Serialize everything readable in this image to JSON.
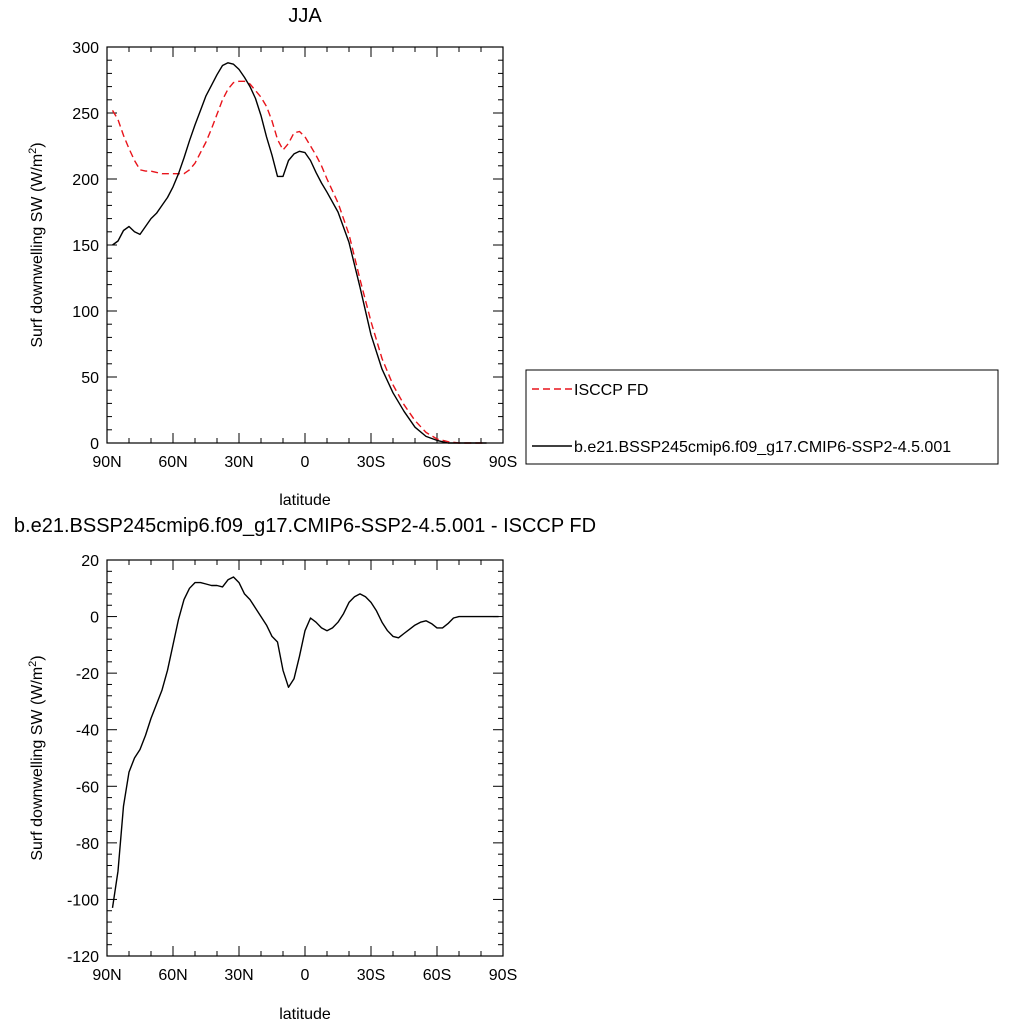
{
  "chart_data": [
    {
      "type": "line",
      "title": "JJA",
      "xlabel": "latitude",
      "ylabel": "Surf downwelling SW (W/m",
      "ylabel_superscript": "2",
      "ylabel_suffix": ")",
      "xlim": [
        90,
        -90
      ],
      "ylim": [
        0,
        300
      ],
      "x_ticks": [
        90,
        60,
        30,
        0,
        -30,
        -60,
        -90
      ],
      "x_tick_labels": [
        "90N",
        "60N",
        "30N",
        "0",
        "30S",
        "60S",
        "90S"
      ],
      "y_ticks": [
        0,
        50,
        100,
        150,
        200,
        250,
        300
      ],
      "y_tick_labels": [
        "0",
        "50",
        "100",
        "150",
        "200",
        "250",
        "300"
      ],
      "legend_position": "right",
      "series": [
        {
          "name": "ISCCP FD",
          "color": "#e8141b",
          "dash": "dashed",
          "x": [
            87.5,
            85,
            82.5,
            80,
            77.5,
            75,
            72.5,
            70,
            67.5,
            65,
            62.5,
            60,
            57.5,
            55,
            52.5,
            50,
            47.5,
            45,
            42.5,
            40,
            37.5,
            35,
            32.5,
            30,
            27.5,
            25,
            22.5,
            20,
            17.5,
            15,
            12.5,
            10,
            7.5,
            5,
            2.5,
            0,
            -2.5,
            -5,
            -7.5,
            -10,
            -15,
            -20,
            -25,
            -30,
            -35,
            -40,
            -45,
            -50,
            -55,
            -60,
            -65,
            -70,
            -72.5,
            -75,
            -77.5,
            -80,
            -82.5
          ],
          "y": [
            252,
            245,
            233,
            223,
            214,
            207,
            206,
            206,
            205,
            204,
            204,
            204,
            204,
            204,
            207,
            212,
            220,
            228,
            238,
            249,
            260,
            268,
            273,
            274,
            274,
            272,
            267,
            262,
            255,
            244,
            230,
            222,
            227,
            235,
            236,
            232,
            225,
            218,
            210,
            200,
            182,
            158,
            124,
            92,
            64,
            44,
            29,
            17,
            8,
            3,
            1,
            0,
            0,
            0,
            0,
            0,
            0
          ]
        },
        {
          "name": "b.e21.BSSP245cmip6.f09_g17.CMIP6-SSP2-4.5.001",
          "color": "#000000",
          "dash": "solid",
          "x": [
            87.5,
            85,
            82.5,
            80,
            77.5,
            75,
            72.5,
            70,
            67.5,
            65,
            62.5,
            60,
            57.5,
            55,
            52.5,
            50,
            47.5,
            45,
            42.5,
            40,
            37.5,
            35,
            32.5,
            30,
            27.5,
            25,
            22.5,
            20,
            17.5,
            15,
            12.5,
            10,
            7.5,
            5,
            2.5,
            0,
            -2.5,
            -5,
            -7.5,
            -10,
            -15,
            -20,
            -25,
            -30,
            -35,
            -40,
            -45,
            -50,
            -55,
            -60,
            -65,
            -70,
            -72.5,
            -75,
            -77.5,
            -80,
            -82.5
          ],
          "y": [
            150,
            153,
            161,
            164,
            160,
            158,
            164,
            170,
            174,
            180,
            186,
            194,
            204,
            216,
            229,
            241,
            252,
            263,
            271,
            279,
            286,
            288,
            287,
            283,
            277,
            270,
            261,
            248,
            232,
            218,
            202,
            202,
            214,
            219,
            221,
            220,
            214,
            205,
            197,
            190,
            175,
            152,
            118,
            82,
            56,
            38,
            24,
            12,
            5,
            2,
            0,
            0,
            0,
            0,
            0,
            0,
            0
          ]
        }
      ]
    },
    {
      "type": "line",
      "title": "b.e21.BSSP245cmip6.f09_g17.CMIP6-SSP2-4.5.001 - ISCCP FD",
      "xlabel": "latitude",
      "ylabel": "Surf downwelling SW (W/m",
      "ylabel_superscript": "2",
      "ylabel_suffix": ")",
      "xlim": [
        90,
        -90
      ],
      "ylim": [
        -120,
        20
      ],
      "x_ticks": [
        90,
        60,
        30,
        0,
        -30,
        -60,
        -90
      ],
      "x_tick_labels": [
        "90N",
        "60N",
        "30N",
        "0",
        "30S",
        "60S",
        "90S"
      ],
      "y_ticks": [
        -120,
        -100,
        -80,
        -60,
        -40,
        -20,
        0,
        20
      ],
      "y_tick_labels": [
        "-120",
        "-100",
        "-80",
        "-60",
        "-40",
        "-20",
        "0",
        "20"
      ],
      "series": [
        {
          "color": "#000000",
          "dash": "solid",
          "x": [
            87.5,
            85,
            82.5,
            80,
            77.5,
            75,
            72.5,
            70,
            67.5,
            65,
            62.5,
            60,
            57.5,
            55,
            52.5,
            50,
            47.5,
            45,
            42.5,
            40,
            37.5,
            35,
            32.5,
            30,
            27.5,
            25,
            22.5,
            20,
            17.5,
            15,
            12.5,
            10,
            7.5,
            5,
            2.5,
            0,
            -2.5,
            -5,
            -7.5,
            -10,
            -12.5,
            -15,
            -17.5,
            -20,
            -22.5,
            -25,
            -27.5,
            -30,
            -32.5,
            -35,
            -37.5,
            -40,
            -42.5,
            -45,
            -47.5,
            -50,
            -52.5,
            -55,
            -57.5,
            -60,
            -62.5,
            -65,
            -67.5,
            -70,
            -75,
            -80,
            -85,
            -88
          ],
          "y": [
            -103,
            -90,
            -67,
            -55,
            -50,
            -47,
            -42,
            -36,
            -31,
            -26,
            -19,
            -10,
            -1,
            6,
            10,
            12,
            12,
            11.5,
            11,
            11,
            10.5,
            13,
            14,
            12,
            8,
            6,
            3,
            0,
            -3,
            -7,
            -9,
            -19,
            -25,
            -22,
            -14,
            -5,
            -0.5,
            -2,
            -4,
            -5,
            -4,
            -2,
            1,
            5,
            7,
            8,
            7,
            5,
            2,
            -2,
            -5,
            -7,
            -7.5,
            -6,
            -4.5,
            -3,
            -2,
            -1.5,
            -2.5,
            -4,
            -4,
            -2.5,
            -0.5,
            0,
            0,
            0,
            0,
            0
          ]
        }
      ]
    }
  ]
}
